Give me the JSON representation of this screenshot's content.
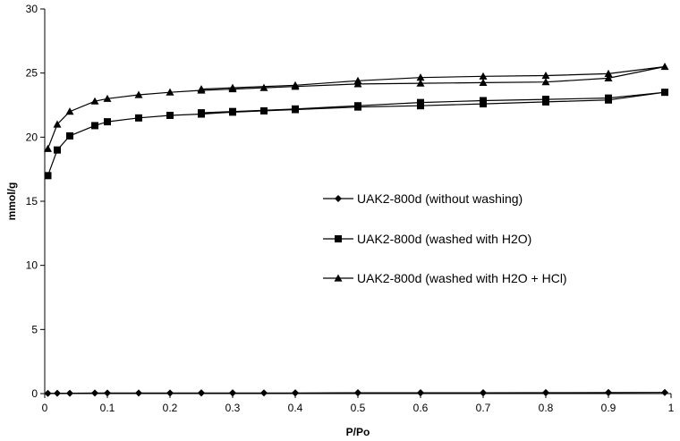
{
  "chart_data": {
    "type": "line",
    "title": "",
    "xlabel": "P/Po",
    "ylabel": "mmol/g",
    "xlim": [
      0,
      1
    ],
    "ylim": [
      0,
      30
    ],
    "xticks": [
      0,
      0.1,
      0.2,
      0.3,
      0.4,
      0.5,
      0.6,
      0.7,
      0.8,
      0.9,
      1
    ],
    "xtick_labels": [
      "0",
      "0.1",
      "0.2",
      "0.3",
      "0.4",
      "0.5",
      "0.6",
      "0.7",
      "0.8",
      "0.9",
      "1"
    ],
    "yticks": [
      0,
      5,
      10,
      15,
      20,
      25,
      30
    ],
    "ytick_labels": [
      "0",
      "5",
      "10",
      "15",
      "20",
      "25",
      "30"
    ],
    "grid": false,
    "legend_position": "center-right",
    "series": [
      {
        "name": "UAK2-800d (without washing)",
        "marker": "diamond",
        "x": [
          0.005,
          0.02,
          0.04,
          0.08,
          0.1,
          0.15,
          0.2,
          0.25,
          0.3,
          0.35,
          0.4,
          0.5,
          0.6,
          0.7,
          0.8,
          0.9,
          0.99,
          0.9,
          0.8,
          0.7,
          0.6,
          0.5,
          0.4,
          0.3,
          0.25
        ],
        "y": [
          0.02,
          0.03,
          0.03,
          0.04,
          0.04,
          0.04,
          0.04,
          0.05,
          0.05,
          0.05,
          0.05,
          0.06,
          0.06,
          0.06,
          0.07,
          0.08,
          0.09,
          0.08,
          0.07,
          0.06,
          0.06,
          0.06,
          0.05,
          0.05,
          0.05
        ]
      },
      {
        "name": "UAK2-800d (washed with H2O)",
        "marker": "square",
        "x": [
          0.005,
          0.02,
          0.04,
          0.08,
          0.1,
          0.15,
          0.2,
          0.25,
          0.3,
          0.35,
          0.4,
          0.5,
          0.6,
          0.7,
          0.8,
          0.9,
          0.99,
          0.9,
          0.8,
          0.7,
          0.6,
          0.5,
          0.4,
          0.3,
          0.25
        ],
        "y": [
          17.0,
          19.0,
          20.1,
          20.9,
          21.2,
          21.5,
          21.7,
          21.8,
          21.95,
          22.05,
          22.15,
          22.35,
          22.45,
          22.6,
          22.75,
          22.9,
          23.5,
          23.05,
          22.95,
          22.85,
          22.7,
          22.45,
          22.2,
          22.0,
          21.9
        ]
      },
      {
        "name": "UAK2-800d (washed with H2O + HCl)",
        "marker": "triangle",
        "x": [
          0.005,
          0.02,
          0.04,
          0.08,
          0.1,
          0.15,
          0.2,
          0.25,
          0.3,
          0.35,
          0.4,
          0.5,
          0.6,
          0.7,
          0.8,
          0.9,
          0.99,
          0.9,
          0.8,
          0.7,
          0.6,
          0.5,
          0.4,
          0.3,
          0.25
        ],
        "y": [
          19.1,
          21.0,
          22.0,
          22.8,
          23.0,
          23.3,
          23.5,
          23.65,
          23.75,
          23.85,
          23.95,
          24.15,
          24.2,
          24.25,
          24.3,
          24.6,
          25.5,
          24.95,
          24.8,
          24.75,
          24.65,
          24.4,
          24.05,
          23.85,
          23.75
        ]
      }
    ]
  }
}
